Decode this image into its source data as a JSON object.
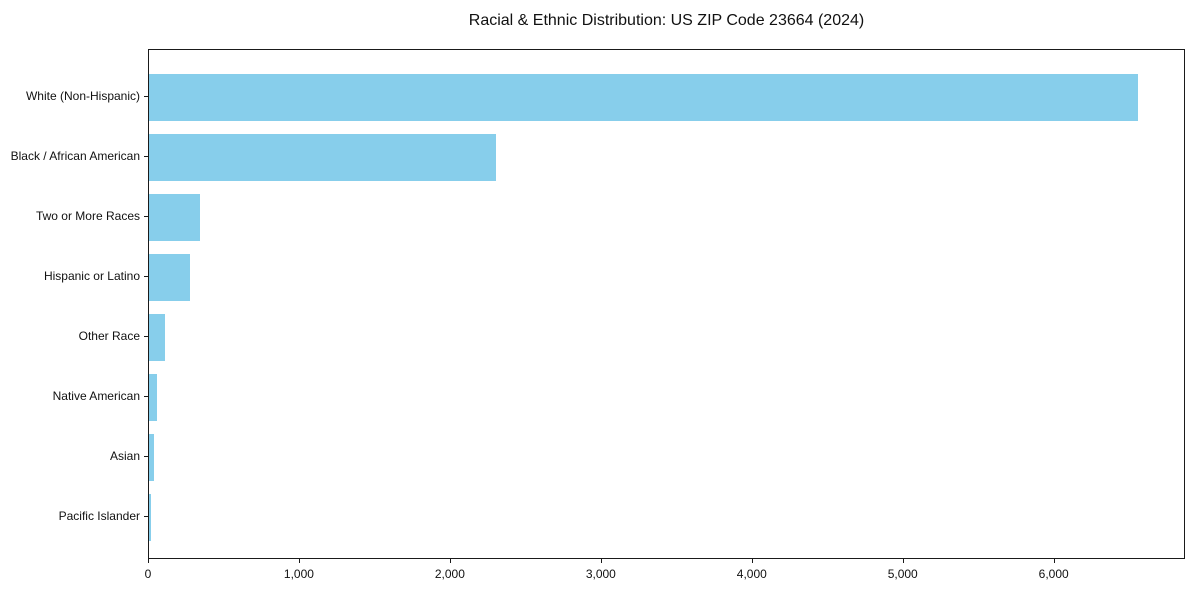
{
  "chart_data": {
    "type": "bar",
    "orientation": "horizontal",
    "title": "Racial & Ethnic Distribution: US ZIP Code 23664 (2024)",
    "categories": [
      "White (Non-Hispanic)",
      "Black / African American",
      "Two or More Races",
      "Hispanic or Latino",
      "Other Race",
      "Native American",
      "Asian",
      "Pacific Islander"
    ],
    "values": [
      6550,
      2300,
      335,
      270,
      105,
      50,
      30,
      15
    ],
    "xlabel": "",
    "ylabel": "",
    "xlim": [
      0,
      6870
    ],
    "xticks": [
      0,
      1000,
      2000,
      3000,
      4000,
      5000,
      6000
    ],
    "xtick_labels": [
      "0",
      "1,000",
      "2,000",
      "3,000",
      "4,000",
      "5,000",
      "6,000"
    ],
    "bar_color": "#87CEEB",
    "grid": false,
    "legend_position": "none",
    "plot_background": "#ffffff"
  }
}
